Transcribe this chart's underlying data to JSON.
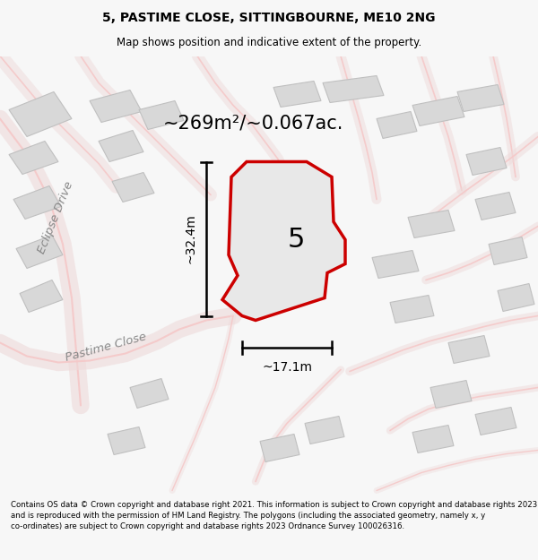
{
  "title": "5, PASTIME CLOSE, SITTINGBOURNE, ME10 2NG",
  "subtitle": "Map shows position and indicative extent of the property.",
  "area_label": "~269m²/~0.067ac.",
  "plot_number": "5",
  "dim_height": "~32.4m",
  "dim_width": "~17.1m",
  "street_label1": "Eclipse Drive",
  "street_label2": "Pastime Close",
  "footer": "Contains OS data © Crown copyright and database right 2021. This information is subject to Crown copyright and database rights 2023 and is reproduced with the permission of HM Land Registry. The polygons (including the associated geometry, namely x, y co-ordinates) are subject to Crown copyright and database rights 2023 Ordnance Survey 100026316.",
  "bg_color": "#f7f7f7",
  "map_bg": "#f2f2f2",
  "plot_fill": "#e8e8e8",
  "plot_edge": "#cc0000",
  "road_color": "#f5c8c8",
  "building_fill": "#d8d8d8",
  "building_edge": "#c0c0c0",
  "dim_line_color": "#000000",
  "text_color": "#000000",
  "street_text_color": "#888888"
}
